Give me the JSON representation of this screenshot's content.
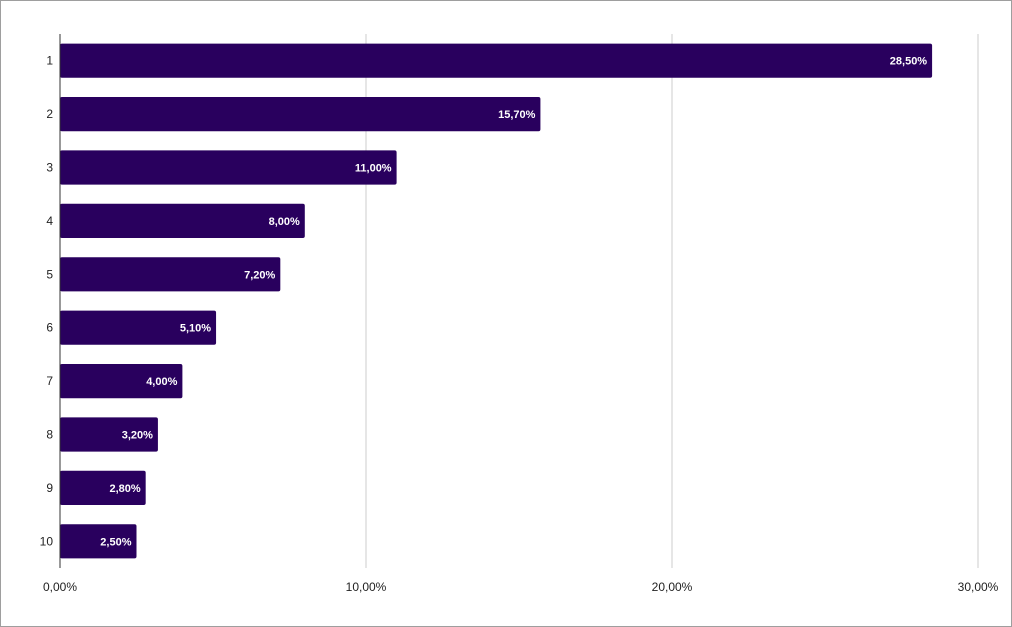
{
  "chart_data": {
    "type": "bar",
    "orientation": "horizontal",
    "categories": [
      "1",
      "2",
      "3",
      "4",
      "5",
      "6",
      "7",
      "8",
      "9",
      "10"
    ],
    "values": [
      28.5,
      15.7,
      11.0,
      8.0,
      7.2,
      5.1,
      4.0,
      3.2,
      2.8,
      2.5
    ],
    "data_labels": [
      "28,50%",
      "15,70%",
      "11,00%",
      "8,00%",
      "7,20%",
      "5,10%",
      "4,00%",
      "3,20%",
      "2,80%",
      "2,50%"
    ],
    "x_ticks": [
      0,
      10,
      20,
      30
    ],
    "x_tick_labels": [
      "0,00%",
      "10,00%",
      "20,00%",
      "30,00%"
    ],
    "xlim": [
      0,
      30
    ],
    "title": "",
    "xlabel": "",
    "ylabel": "",
    "grid": true,
    "legend": "none",
    "bar_color": "#29005e"
  }
}
